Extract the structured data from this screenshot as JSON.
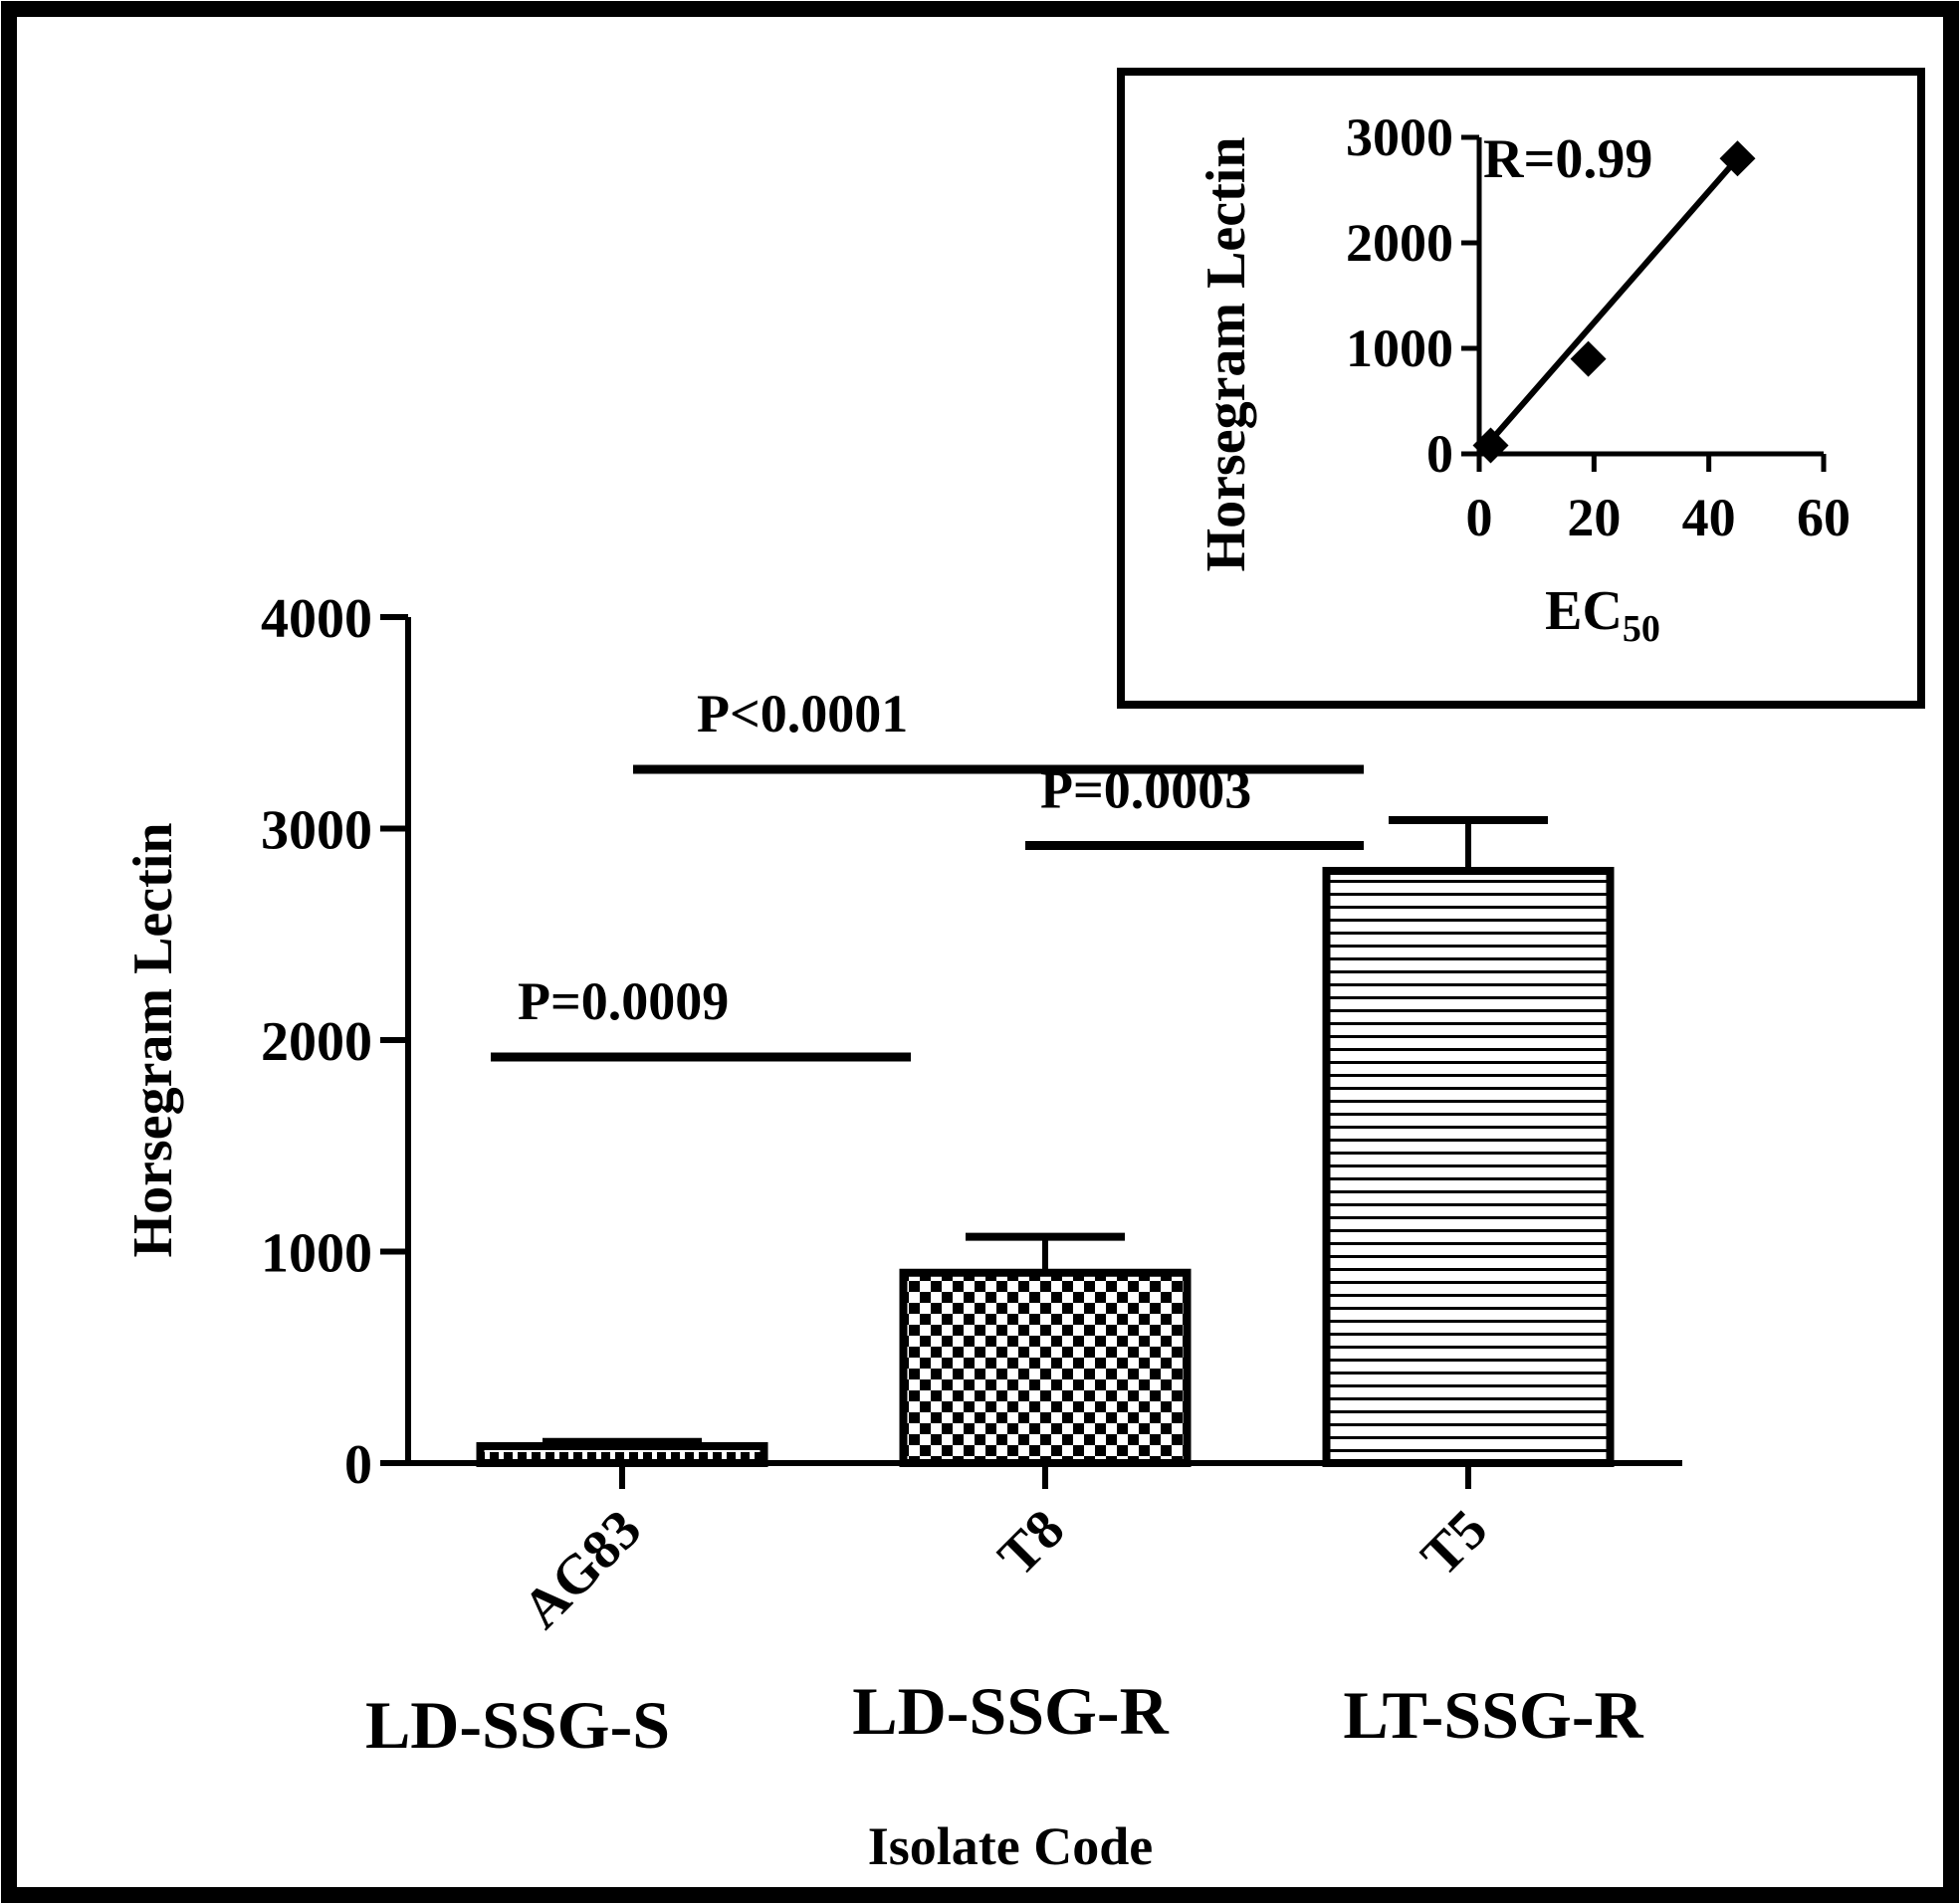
{
  "chart_data": [
    {
      "type": "bar",
      "ylabel": "Horsegram Lectin",
      "xlabel": "Isolate Code",
      "ylim": [
        0,
        4000
      ],
      "yticks": [
        0,
        1000,
        2000,
        3000,
        4000
      ],
      "categories": [
        "AG83",
        "T8",
        "T5"
      ],
      "groups": [
        "LD-SSG-S",
        "LD-SSG-R",
        "LT-SSG-R"
      ],
      "patterns": [
        "dotted",
        "checkered",
        "horizontal-lines"
      ],
      "values": [
        80,
        900,
        2800
      ],
      "errors": [
        20,
        170,
        240
      ],
      "significance": [
        {
          "label": "P=0.0009",
          "from": "AG83",
          "to": "T8",
          "y": 1920
        },
        {
          "label": "P<0.0001",
          "from": "AG83",
          "to": "T5",
          "y": 3280
        },
        {
          "label": "P=0.0003",
          "from": "T8",
          "to": "T5",
          "y": 2920
        }
      ]
    },
    {
      "type": "scatter",
      "inset": true,
      "ylabel": "Horsegram Lectin",
      "xlabel": "EC",
      "xlabel_sub": "50",
      "annotation": "R=0.99",
      "xlim": [
        0,
        60
      ],
      "ylim": [
        0,
        3000
      ],
      "xticks": [
        0,
        20,
        40,
        60
      ],
      "yticks": [
        0,
        1000,
        2000,
        3000
      ],
      "x": [
        2,
        19,
        45
      ],
      "y": [
        80,
        900,
        2800
      ],
      "fit_line": {
        "from": [
          0,
          0
        ],
        "to": [
          45,
          2800
        ]
      }
    }
  ]
}
